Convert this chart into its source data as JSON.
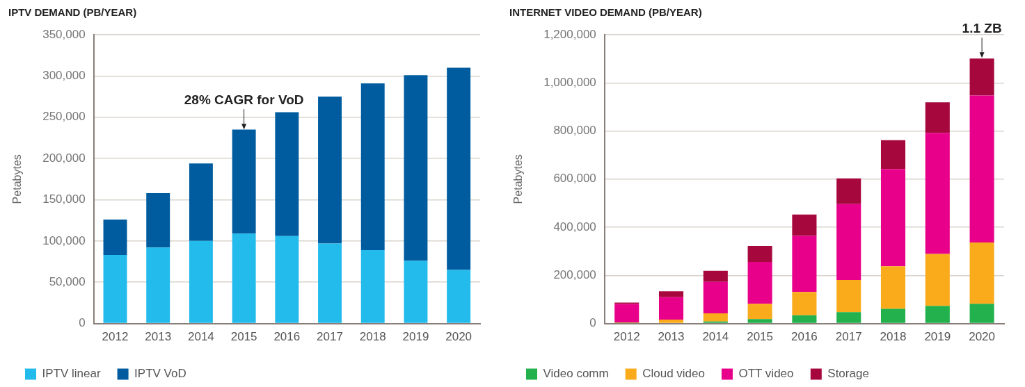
{
  "chart_data": [
    {
      "type": "bar",
      "title": "IPTV DEMAND (PB/YEAR)",
      "ylabel": "Petabytes",
      "stacked": true,
      "grid": "y",
      "legend": "bottom left",
      "categories": [
        "2012",
        "2013",
        "2014",
        "2015",
        "2016",
        "2017",
        "2018",
        "2019",
        "2020"
      ],
      "series": [
        {
          "name": "IPTV linear",
          "color": "#22bbec",
          "values": [
            83000,
            92000,
            100000,
            109000,
            106000,
            97000,
            89000,
            76000,
            65000
          ]
        },
        {
          "name": "IPTV VoD",
          "color": "#005c9e",
          "values": [
            43000,
            66000,
            94000,
            126000,
            150000,
            178000,
            202000,
            225000,
            245000
          ]
        }
      ],
      "ylim": [
        0,
        350000
      ],
      "yticks": [
        {
          "value": 0,
          "label": "0"
        },
        {
          "value": 50000,
          "label": "50,000"
        },
        {
          "value": 100000,
          "label": "100,000"
        },
        {
          "value": 150000,
          "label": "150,000"
        },
        {
          "value": 200000,
          "label": "200,000"
        },
        {
          "value": 250000,
          "label": "250,000"
        },
        {
          "value": 300000,
          "label": "300,000"
        },
        {
          "value": 350000,
          "label": "350,000"
        }
      ],
      "annotations": [
        {
          "text": "28% CAGR for VoD",
          "x": "2015",
          "y": 234500
        }
      ]
    },
    {
      "type": "bar",
      "title": "INTERNET VIDEO DEMAND (PB/YEAR)",
      "ylabel": "Petabytes",
      "stacked": true,
      "grid": "y",
      "legend": "bottom left",
      "categories": [
        "2012",
        "2013",
        "2014",
        "2015",
        "2016",
        "2017",
        "2018",
        "2019",
        "2020"
      ],
      "series": [
        {
          "name": "Video comm",
          "color": "#22b14c",
          "values": [
            2000,
            null,
            8000,
            18000,
            34000,
            47000,
            61000,
            73000,
            82000
          ]
        },
        {
          "name": "Cloud video",
          "color": "#f9ab1c",
          "values": [
            2000,
            16000,
            34000,
            64000,
            97000,
            134000,
            177000,
            216000,
            255000
          ]
        },
        {
          "name": "OTT video",
          "color": "#e8008a",
          "values": [
            77000,
            93000,
            131000,
            174000,
            233000,
            315000,
            404000,
            503000,
            610000
          ]
        },
        {
          "name": "Storage",
          "color": "#a6083e",
          "values": [
            6000,
            25000,
            46000,
            66000,
            89000,
            107000,
            120000,
            127000,
            154000
          ]
        }
      ],
      "ylim": [
        0,
        1200000
      ],
      "yticks": [
        {
          "value": 0,
          "label": "0"
        },
        {
          "value": 200000,
          "label": "200,000"
        },
        {
          "value": 400000,
          "label": "400,000"
        },
        {
          "value": 600000,
          "label": "600,000"
        },
        {
          "value": 800000,
          "label": "800,000"
        },
        {
          "value": 1000000,
          "label": "1,000,000"
        },
        {
          "value": 1200000,
          "label": "1,200,000"
        }
      ],
      "annotations": [
        {
          "text": "1.1 ZB",
          "x": "2020",
          "y": 1101000
        }
      ]
    }
  ]
}
